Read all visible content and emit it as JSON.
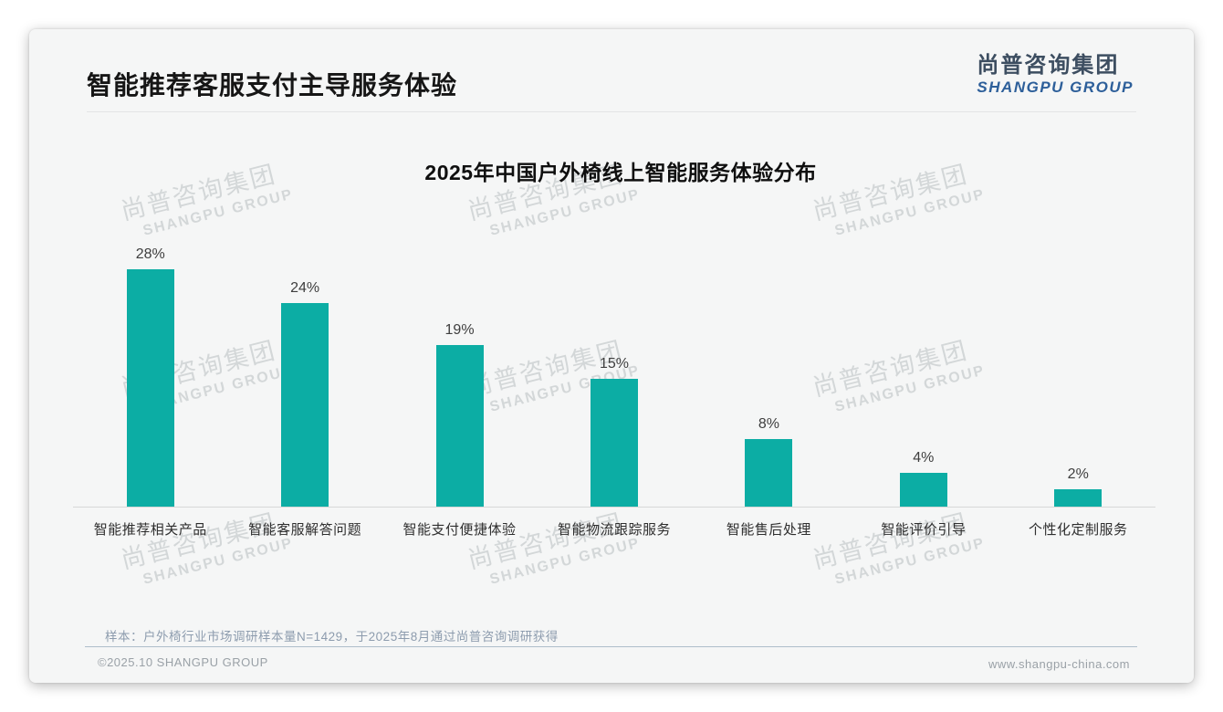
{
  "page": {
    "title": "智能推荐客服支付主导服务体验",
    "logo": {
      "cn": "尚普咨询集团",
      "en": "SHANGPU GROUP"
    },
    "watermark": {
      "cn": "尚普咨询集团",
      "en": "SHANGPU GROUP"
    },
    "footer": {
      "note": "样本：户外椅行业市场调研样本量N=1429，于2025年8月通过尚普咨询调研获得",
      "copyright": "©2025.10 SHANGPU GROUP",
      "website": "www.shangpu-china.com"
    }
  },
  "colors": {
    "bar_teal": "#0cada4",
    "logo_blue": "#2d5f9a",
    "logo_dark": "#3d4e61",
    "slide_background": "#f5f6f6",
    "watermark_gray": "#d8dadc",
    "footer_divider_blue": "#aebecb"
  },
  "chart_data": {
    "type": "bar",
    "title": "2025年中国户外椅线上智能服务体验分布",
    "categories": [
      "智能推荐相关产品",
      "智能客服解答问题",
      "智能支付便捷体验",
      "智能物流跟踪服务",
      "智能售后处理",
      "智能评价引导",
      "个性化定制服务"
    ],
    "values": [
      28,
      24,
      19,
      15,
      8,
      4,
      2
    ],
    "labels": [
      "28%",
      "24%",
      "19%",
      "15%",
      "8%",
      "4%",
      "2%"
    ],
    "bar_color": "#0cada4",
    "xlabel": "",
    "ylabel": "",
    "ylim": [
      0,
      30
    ],
    "grid": false,
    "legend": "none",
    "value_labels_position": "above-bar"
  }
}
